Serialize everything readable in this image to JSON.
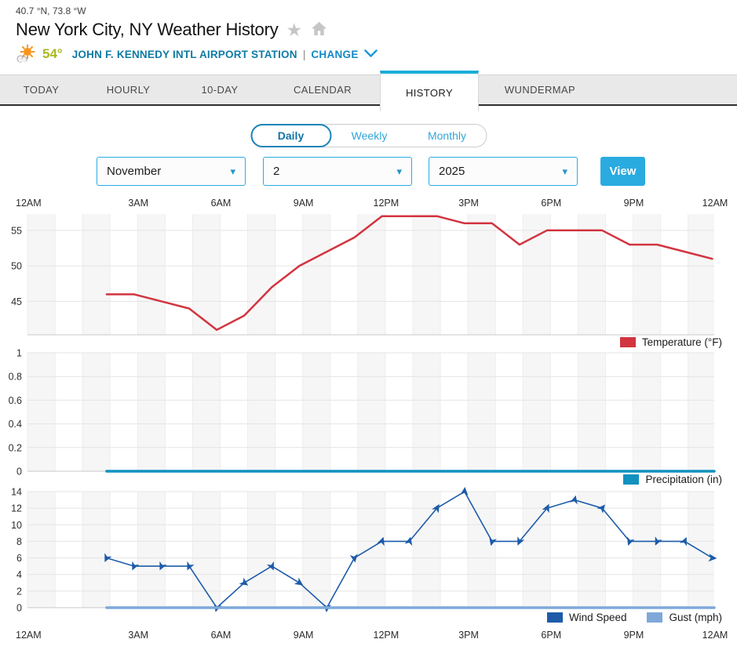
{
  "header": {
    "coordinates": "40.7 °N, 73.8 °W",
    "title": "New York City, NY Weather History",
    "current_temp": "54°",
    "station_name": "JOHN F. KENNEDY INTL AIRPORT STATION",
    "separator": "|",
    "change_label": "CHANGE",
    "icons": [
      "partly-sunny-icon",
      "star-icon",
      "home-icon",
      "chevron-down-icon"
    ]
  },
  "tabs": [
    {
      "label": "TODAY",
      "active": false
    },
    {
      "label": "HOURLY",
      "active": false
    },
    {
      "label": "10-DAY",
      "active": false
    },
    {
      "label": "CALENDAR",
      "active": false
    },
    {
      "label": "HISTORY",
      "active": true
    },
    {
      "label": "WUNDERMAP",
      "active": false
    }
  ],
  "period_toggle": {
    "options": [
      "Daily",
      "Weekly",
      "Monthly"
    ],
    "selected": "Daily"
  },
  "date_controls": {
    "month": "November",
    "day": "2",
    "year": "2025",
    "view_label": "View"
  },
  "colors": {
    "accent_cyan": "#29abe0",
    "tab_highlight": "#1badd8",
    "temperature": "#d23440",
    "precipitation": "#1191bf",
    "wind_speed": "#1d5ba9",
    "gust": "#7fa8d9",
    "stripe": "#f6f6f6",
    "grid": "#e4e4e4"
  },
  "x_axis": {
    "tick_hours": [
      0,
      3,
      6,
      9,
      12,
      15,
      18,
      21,
      24
    ],
    "tick_labels": [
      "12AM",
      "3AM",
      "6AM",
      "9AM",
      "12PM",
      "3PM",
      "6PM",
      "9PM",
      "12AM"
    ]
  },
  "chart_data": [
    {
      "type": "line",
      "name": "temperature",
      "ylabel_ticks": [
        55,
        50,
        45
      ],
      "ylim": [
        40.3,
        57.3
      ],
      "legend": [
        {
          "label": "Temperature (°F)",
          "color": "#d23440"
        }
      ],
      "series": [
        {
          "name": "Temperature",
          "color": "#d23440",
          "line_width": 2.5,
          "x_hours": [
            1.85,
            2.85,
            3.85,
            4.85,
            5.85,
            6.85,
            7.85,
            8.85,
            9.85,
            10.85,
            11.85,
            12.85,
            13.85,
            14.85,
            15.85,
            16.85,
            17.85,
            18.85,
            19.85,
            20.85,
            21.85,
            22.85,
            23.85
          ],
          "values": [
            46,
            46,
            45,
            44,
            41,
            43,
            47,
            50,
            52,
            54,
            57,
            57,
            57,
            56,
            56,
            53,
            55,
            55,
            55,
            53,
            53,
            52,
            51
          ]
        }
      ]
    },
    {
      "type": "line",
      "name": "precipitation",
      "ylabel_ticks": [
        1,
        0.8,
        0.6,
        0.4,
        0.2,
        0
      ],
      "ylim": [
        0,
        1
      ],
      "legend": [
        {
          "label": "Precipitation (in)",
          "color": "#1191bf"
        }
      ],
      "series": [
        {
          "name": "Precipitation",
          "color": "#1191bf",
          "line_width": 3.5,
          "x_hours": [
            1.85,
            24
          ],
          "values": [
            0,
            0
          ]
        }
      ]
    },
    {
      "type": "line",
      "name": "wind",
      "ylabel_ticks": [
        14,
        12,
        10,
        8,
        6,
        4,
        2,
        0
      ],
      "ylim": [
        0,
        14
      ],
      "legend": [
        {
          "label": "Wind Speed",
          "color": "#1d5ba9"
        },
        {
          "label": "Gust (mph)",
          "color": "#7fa8d9"
        }
      ],
      "series": [
        {
          "name": "Wind Speed",
          "color": "#1d5ba9",
          "line_width": 1.6,
          "marker": "arrow",
          "x_hours": [
            1.85,
            2.85,
            3.85,
            4.85,
            5.85,
            6.85,
            7.85,
            8.85,
            9.85,
            10.85,
            11.85,
            12.85,
            13.85,
            14.85,
            15.85,
            16.85,
            17.85,
            18.85,
            19.85,
            20.85,
            21.85,
            22.85,
            23.85
          ],
          "values": [
            6,
            5,
            5,
            5,
            0,
            3,
            5,
            3,
            0,
            6,
            8,
            8,
            12,
            14,
            8,
            8,
            12,
            13,
            12,
            8,
            8,
            8,
            6
          ],
          "marker_rotations": [
            205,
            205,
            205,
            205,
            195,
            125,
            155,
            125,
            185,
            170,
            20,
            15,
            30,
            5,
            195,
            205,
            25,
            15,
            40,
            200,
            205,
            25,
            95
          ]
        },
        {
          "name": "Gust",
          "color": "#7fa8d9",
          "line_width": 3.5,
          "x_hours": [
            1.85,
            24
          ],
          "values": [
            0,
            0
          ]
        }
      ]
    }
  ]
}
